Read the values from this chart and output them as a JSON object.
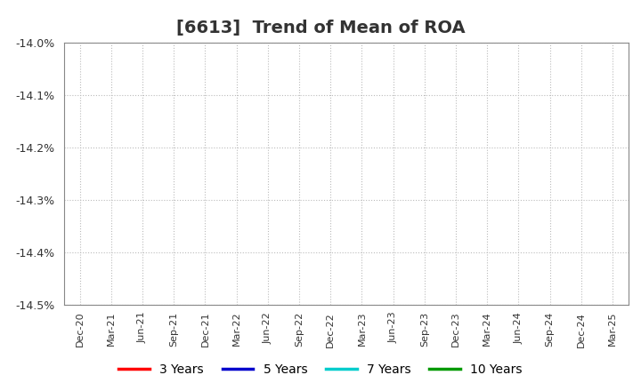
{
  "title": "[6613]  Trend of Mean of ROA",
  "ylim": [
    -14.5,
    -14.0
  ],
  "yticks": [
    -14.5,
    -14.4,
    -14.3,
    -14.2,
    -14.1,
    -14.0
  ],
  "ytick_labels": [
    "-14.5%",
    "-14.4%",
    "-14.3%",
    "-14.2%",
    "-14.1%",
    "-14.0%"
  ],
  "background_color": "#ffffff",
  "plot_bg_color": "#ffffff",
  "grid_color": "#bbbbbb",
  "title_fontsize": 14,
  "legend_entries": [
    "3 Years",
    "5 Years",
    "7 Years",
    "10 Years"
  ],
  "legend_colors": [
    "#ff0000",
    "#0000cc",
    "#00cccc",
    "#009900"
  ],
  "x_tick_labels": [
    "Dec-20",
    "Mar-21",
    "Jun-21",
    "Sep-21",
    "Dec-21",
    "Mar-22",
    "Jun-22",
    "Sep-22",
    "Dec-22",
    "Mar-23",
    "Jun-23",
    "Sep-23",
    "Dec-23",
    "Mar-24",
    "Jun-24",
    "Sep-24",
    "Dec-24",
    "Mar-25"
  ]
}
